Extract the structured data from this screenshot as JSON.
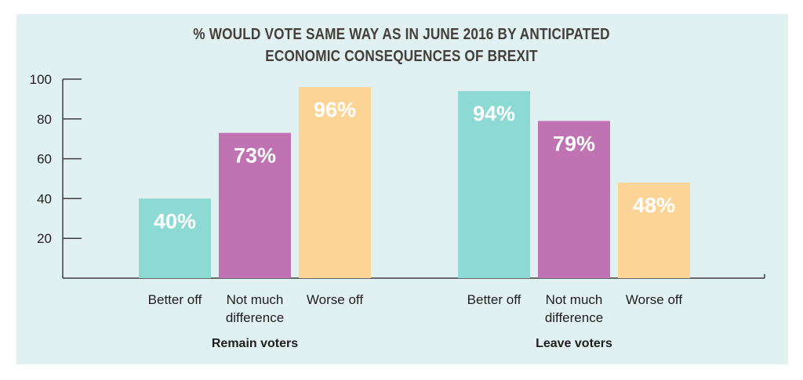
{
  "chart_data": {
    "type": "bar",
    "title": "% WOULD VOTE SAME WAY AS IN JUNE 2016 BY ANTICIPATED\nECONOMIC CONSEQUENCES OF BREXIT",
    "xlabel": "",
    "ylabel": "",
    "ylim": [
      0,
      100
    ],
    "yticks": [
      20,
      40,
      60,
      80,
      100
    ],
    "grid": false,
    "groups": [
      {
        "name": "Remain voters",
        "bars": [
          {
            "category": "Better off",
            "value": 40,
            "label": "40%",
            "color": "#8dd9d3"
          },
          {
            "category": "Not much\ndifference",
            "value": 73,
            "label": "73%",
            "color": "#c073b3"
          },
          {
            "category": "Worse off",
            "value": 96,
            "label": "96%",
            "color": "#fcd596"
          }
        ]
      },
      {
        "name": "Leave voters",
        "bars": [
          {
            "category": "Better off",
            "value": 94,
            "label": "94%",
            "color": "#8dd9d3"
          },
          {
            "category": "Not much\ndifference",
            "value": 79,
            "label": "79%",
            "color": "#c073b3"
          },
          {
            "category": "Worse off",
            "value": 48,
            "label": "48%",
            "color": "#fcd596"
          }
        ]
      }
    ]
  },
  "colors": {
    "background": "#e1f0f1",
    "axis": "#3c3c3c",
    "text": "#1e1e1e",
    "title": "#45403b",
    "data_label": "#ffffff"
  }
}
